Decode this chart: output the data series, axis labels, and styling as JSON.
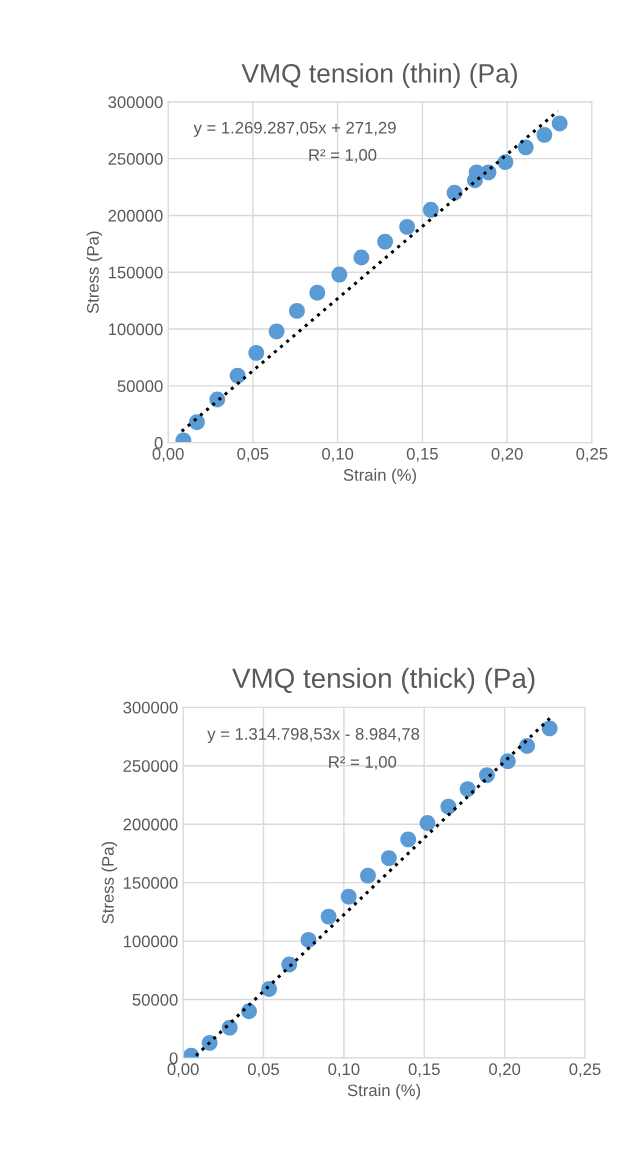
{
  "chart_data": [
    {
      "type": "scatter",
      "title": "VMQ tension (thin) (Pa)",
      "xlabel": "Strain (%)",
      "ylabel": "Stress (Pa)",
      "annotations": [
        "y = 1.269.287,05x + 271,29",
        "R² = 1,00"
      ],
      "series": [
        {
          "color": "#5b9bd5",
          "marker": "circle",
          "x": [
            0.009,
            0.017,
            0.029,
            0.041,
            0.052,
            0.064,
            0.076,
            0.088,
            0.101,
            0.114,
            0.128,
            0.141,
            0.155,
            0.169,
            0.181,
            0.182,
            0.189,
            0.199,
            0.211,
            0.222,
            0.231
          ],
          "values": [
            2000,
            18000,
            38000,
            59000,
            79000,
            98000,
            116000,
            132000,
            148000,
            163000,
            177000,
            190000,
            205000,
            220000,
            231000,
            238000,
            238000,
            247000,
            260000,
            271000,
            281000
          ]
        },
        {
          "type": "line",
          "color": "#000000",
          "line_style": "dotted",
          "marker": "none",
          "x": [
            0.008,
            0.23
          ],
          "values": [
            10000,
            292000
          ]
        }
      ],
      "xlim": [
        0,
        0.25
      ],
      "ylim": [
        0,
        300000
      ],
      "xticks": [
        {
          "value": 0,
          "label": "0,00"
        },
        {
          "value": 0.05,
          "label": "0,05"
        },
        {
          "value": 0.1,
          "label": "0,10"
        },
        {
          "value": 0.15,
          "label": "0,15"
        },
        {
          "value": 0.2,
          "label": "0,20"
        },
        {
          "value": 0.25,
          "label": "0,25"
        }
      ],
      "yticks": [
        0,
        50000,
        100000,
        150000,
        200000,
        250000,
        300000
      ],
      "grid": true,
      "legend": false
    },
    {
      "type": "scatter",
      "title": "VMQ tension (thick) (Pa)",
      "xlabel": "Strain (%)",
      "ylabel": "Stress (Pa)",
      "annotations": [
        "y = 1.314.798,53x - 8.984,78",
        "R² = 1,00"
      ],
      "series": [
        {
          "color": "#5b9bd5",
          "marker": "circle",
          "x": [
            0.005,
            0.0165,
            0.029,
            0.041,
            0.0535,
            0.066,
            0.078,
            0.0905,
            0.103,
            0.115,
            0.128,
            0.14,
            0.152,
            0.165,
            0.177,
            0.189,
            0.202,
            0.214,
            0.228
          ],
          "values": [
            2000,
            13000,
            26000,
            40000,
            59000,
            80000,
            101000,
            121000,
            138000,
            156000,
            171000,
            187000,
            201000,
            215000,
            230000,
            242000,
            254000,
            267000,
            282000
          ]
        },
        {
          "type": "line",
          "color": "#000000",
          "line_style": "dotted",
          "marker": "none",
          "x": [
            0.008,
            0.23
          ],
          "values": [
            2000,
            293000
          ]
        }
      ],
      "xlim": [
        0,
        0.25
      ],
      "ylim": [
        0,
        300000
      ],
      "xticks": [
        {
          "value": 0,
          "label": "0,00"
        },
        {
          "value": 0.05,
          "label": "0,05"
        },
        {
          "value": 0.1,
          "label": "0,10"
        },
        {
          "value": 0.15,
          "label": "0,15"
        },
        {
          "value": 0.2,
          "label": "0,20"
        },
        {
          "value": 0.25,
          "label": "0,25"
        }
      ],
      "yticks": [
        0,
        50000,
        100000,
        150000,
        200000,
        250000,
        300000
      ],
      "grid": true,
      "legend": false
    }
  ]
}
